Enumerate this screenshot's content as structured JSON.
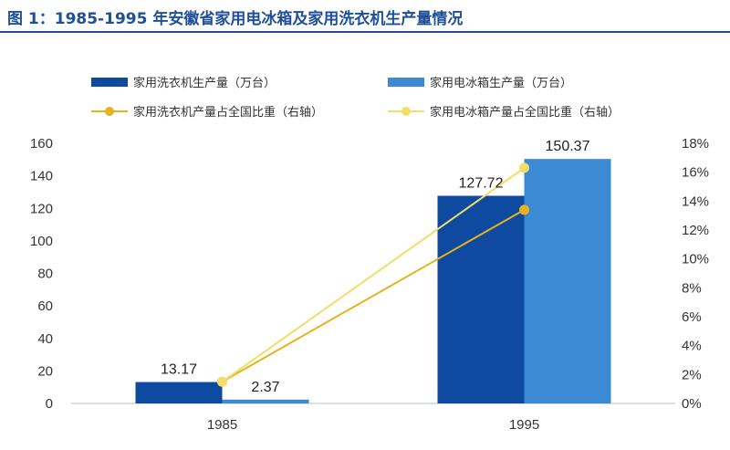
{
  "title": "图 1：1985-1995 年安徽省家用电冰箱及家用洗衣机生产量情况",
  "colors": {
    "title": "#1f4e9a",
    "washer_bar": "#0d4aa0",
    "fridge_bar": "#3d8ad4",
    "washer_line": "#e6b21e",
    "fridge_line": "#f2dc6a"
  },
  "chart_data": {
    "type": "bar",
    "categories": [
      "1985",
      "1995"
    ],
    "y_left": {
      "lim": [
        0,
        160
      ],
      "ticks": [
        "0",
        "20",
        "40",
        "60",
        "80",
        "100",
        "120",
        "140",
        "160"
      ]
    },
    "y_right": {
      "lim": [
        0,
        18
      ],
      "ticks": [
        "0%",
        "2%",
        "4%",
        "6%",
        "8%",
        "10%",
        "12%",
        "14%",
        "16%",
        "18%"
      ]
    },
    "legend_position": "top",
    "series": [
      {
        "name": "家用洗衣机生产量（万台）",
        "kind": "bar",
        "axis": "left",
        "values": [
          13.17,
          127.72
        ],
        "labels": [
          "13.17",
          "127.72"
        ]
      },
      {
        "name": "家用电冰箱生产量（万台）",
        "kind": "bar",
        "axis": "left",
        "values": [
          2.37,
          150.37
        ],
        "labels": [
          "2.37",
          "150.37"
        ]
      },
      {
        "name": "家用洗衣机产量占全国比重（右轴）",
        "kind": "line",
        "axis": "right",
        "values": [
          1.5,
          13.4
        ]
      },
      {
        "name": "家用电冰箱产量占全国比重（右轴）",
        "kind": "line",
        "axis": "right",
        "values": [
          1.5,
          16.3
        ]
      }
    ]
  }
}
